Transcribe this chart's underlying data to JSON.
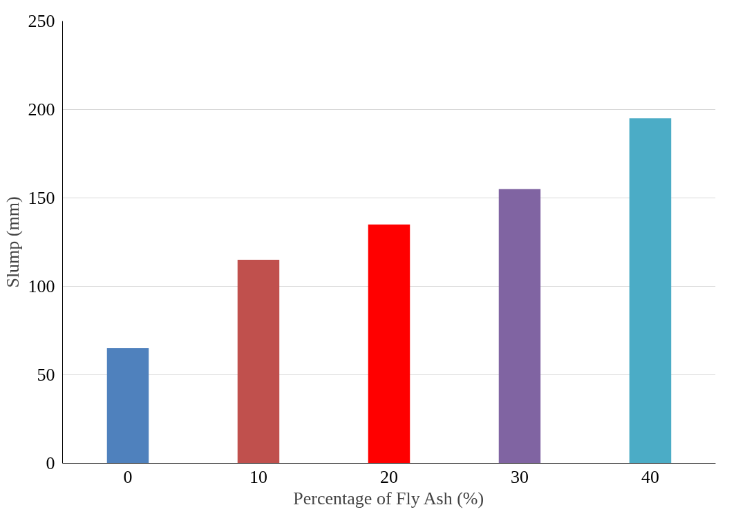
{
  "chart_data": {
    "type": "bar",
    "xlabel": "Percentage of Fly Ash (%)",
    "ylabel": "Slump (mm)",
    "categories": [
      "0",
      "10",
      "20",
      "30",
      "40"
    ],
    "values": [
      65,
      115,
      135,
      155,
      195
    ],
    "colors": [
      "#4f81bd",
      "#c0504d",
      "#ff0000",
      "#8064a2",
      "#4bacc6"
    ],
    "ylim": [
      0,
      250
    ],
    "yticks": [
      0,
      50,
      100,
      150,
      200,
      250
    ],
    "grid": "y"
  }
}
